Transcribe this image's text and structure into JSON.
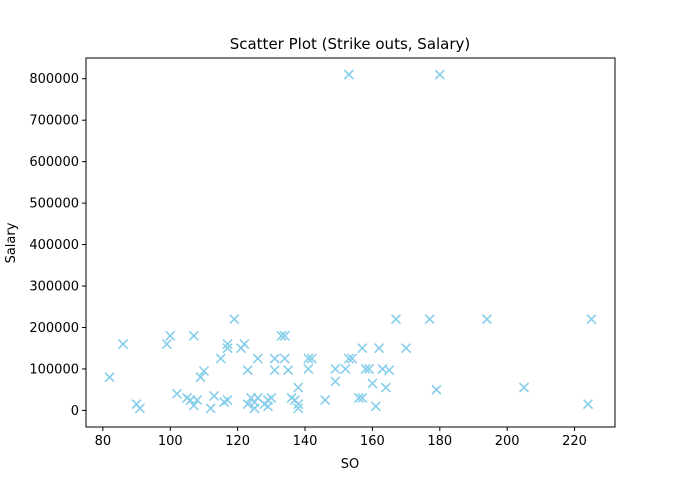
{
  "chart_data": {
    "type": "scatter",
    "title": "Scatter Plot (Strike outs, Salary)",
    "xlabel": "SO",
    "ylabel": "Salary",
    "marker": "x",
    "color": "#87ceeb",
    "xlim": [
      75,
      232
    ],
    "ylim": [
      -40000,
      850000
    ],
    "xticks": [
      80,
      100,
      120,
      140,
      160,
      180,
      200,
      220
    ],
    "yticks": [
      0,
      100000,
      200000,
      300000,
      400000,
      500000,
      600000,
      700000,
      800000
    ],
    "grid": false,
    "points": [
      {
        "x": 153,
        "y": 810000
      },
      {
        "x": 180,
        "y": 810000
      },
      {
        "x": 82,
        "y": 80000
      },
      {
        "x": 86,
        "y": 160000
      },
      {
        "x": 90,
        "y": 15000
      },
      {
        "x": 91,
        "y": 5000
      },
      {
        "x": 99,
        "y": 160000
      },
      {
        "x": 100,
        "y": 180000
      },
      {
        "x": 102,
        "y": 40000
      },
      {
        "x": 105,
        "y": 30000
      },
      {
        "x": 106,
        "y": 25000
      },
      {
        "x": 107,
        "y": 180000
      },
      {
        "x": 107,
        "y": 12000
      },
      {
        "x": 108,
        "y": 25000
      },
      {
        "x": 109,
        "y": 80000
      },
      {
        "x": 110,
        "y": 95000
      },
      {
        "x": 112,
        "y": 5000
      },
      {
        "x": 113,
        "y": 35000
      },
      {
        "x": 115,
        "y": 125000
      },
      {
        "x": 116,
        "y": 20000
      },
      {
        "x": 117,
        "y": 150000
      },
      {
        "x": 117,
        "y": 160000
      },
      {
        "x": 117,
        "y": 25000
      },
      {
        "x": 119,
        "y": 220000
      },
      {
        "x": 121,
        "y": 150000
      },
      {
        "x": 122,
        "y": 160000
      },
      {
        "x": 123,
        "y": 97000
      },
      {
        "x": 123,
        "y": 15000
      },
      {
        "x": 124,
        "y": 30000
      },
      {
        "x": 125,
        "y": 5000
      },
      {
        "x": 125,
        "y": 20000
      },
      {
        "x": 126,
        "y": 125000
      },
      {
        "x": 126,
        "y": 30000
      },
      {
        "x": 128,
        "y": 15000
      },
      {
        "x": 129,
        "y": 25000
      },
      {
        "x": 129,
        "y": 10000
      },
      {
        "x": 130,
        "y": 30000
      },
      {
        "x": 131,
        "y": 125000
      },
      {
        "x": 131,
        "y": 97000
      },
      {
        "x": 133,
        "y": 180000
      },
      {
        "x": 134,
        "y": 180000
      },
      {
        "x": 134,
        "y": 125000
      },
      {
        "x": 135,
        "y": 97000
      },
      {
        "x": 136,
        "y": 30000
      },
      {
        "x": 137,
        "y": 25000
      },
      {
        "x": 138,
        "y": 55000
      },
      {
        "x": 138,
        "y": 15000
      },
      {
        "x": 138,
        "y": 5000
      },
      {
        "x": 141,
        "y": 100000
      },
      {
        "x": 141,
        "y": 125000
      },
      {
        "x": 142,
        "y": 125000
      },
      {
        "x": 146,
        "y": 25000
      },
      {
        "x": 149,
        "y": 70000
      },
      {
        "x": 149,
        "y": 100000
      },
      {
        "x": 152,
        "y": 100000
      },
      {
        "x": 153,
        "y": 125000
      },
      {
        "x": 154,
        "y": 125000
      },
      {
        "x": 156,
        "y": 30000
      },
      {
        "x": 157,
        "y": 30000
      },
      {
        "x": 157,
        "y": 150000
      },
      {
        "x": 158,
        "y": 100000
      },
      {
        "x": 159,
        "y": 100000
      },
      {
        "x": 160,
        "y": 65000
      },
      {
        "x": 161,
        "y": 10000
      },
      {
        "x": 162,
        "y": 150000
      },
      {
        "x": 163,
        "y": 100000
      },
      {
        "x": 164,
        "y": 55000
      },
      {
        "x": 165,
        "y": 97000
      },
      {
        "x": 167,
        "y": 220000
      },
      {
        "x": 170,
        "y": 150000
      },
      {
        "x": 177,
        "y": 220000
      },
      {
        "x": 179,
        "y": 50000
      },
      {
        "x": 194,
        "y": 220000
      },
      {
        "x": 205,
        "y": 55000
      },
      {
        "x": 224,
        "y": 15000
      },
      {
        "x": 225,
        "y": 220000
      }
    ]
  }
}
